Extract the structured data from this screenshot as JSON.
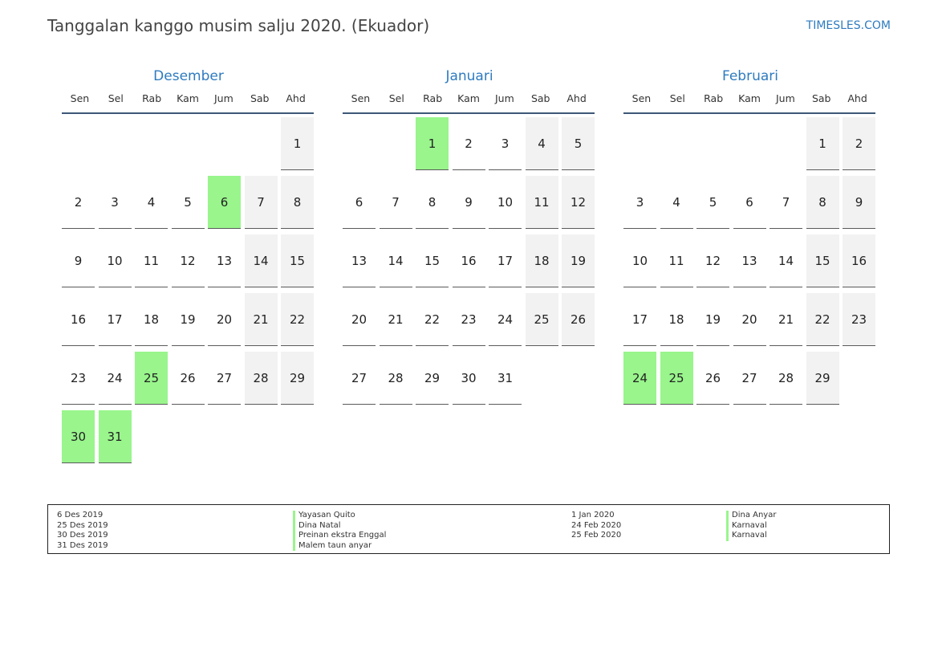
{
  "header": {
    "title": "Tanggalan kanggo musim salju 2020. (Ekuador)",
    "brand": "TIMESLES.COM"
  },
  "weekday_labels": [
    "Sen",
    "Sel",
    "Rab",
    "Kam",
    "Jum",
    "Sab",
    "Ahd"
  ],
  "months": [
    {
      "name": "Desember",
      "start_weekday": 6,
      "days": 31,
      "holidays": [
        6,
        25,
        30,
        31
      ]
    },
    {
      "name": "Januari",
      "start_weekday": 2,
      "days": 31,
      "holidays": [
        1
      ]
    },
    {
      "name": "Februari",
      "start_weekday": 5,
      "days": 29,
      "holidays": [
        24,
        25
      ]
    }
  ],
  "legend": {
    "left_dates": [
      "6 Des 2019",
      "25 Des 2019",
      "30 Des 2019",
      "31 Des 2019"
    ],
    "left_names": [
      "Yayasan Quito",
      "Dina Natal",
      "Preinan ekstra Enggal",
      "Malem taun anyar"
    ],
    "right_dates": [
      "1 Jan 2020",
      "24 Feb 2020",
      "25 Feb 2020"
    ],
    "right_names": [
      "Dina Anyar",
      "Karnaval",
      "Karnaval"
    ]
  },
  "colors": {
    "accent": "#2e7bbf",
    "holiday": "#99f58c",
    "weekend": "#f2f2f2"
  }
}
